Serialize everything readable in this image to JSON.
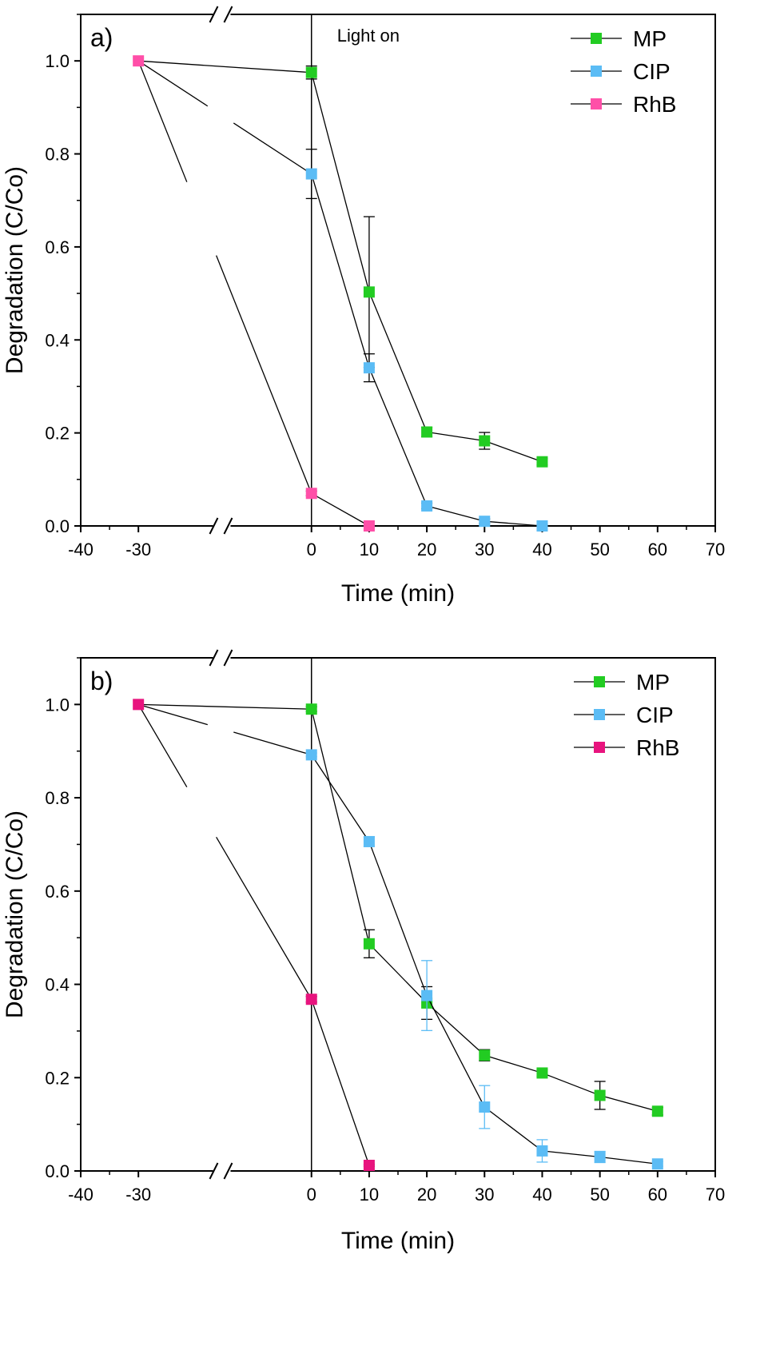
{
  "chart_data": [
    {
      "type": "scatter",
      "panel_label": "a)",
      "annotation": "Light on",
      "xlabel": "Time (min)",
      "ylabel": "Degradation (C/Co)",
      "xlim": [
        -40,
        70
      ],
      "ylim": [
        0,
        1.1
      ],
      "x_axis_break": [
        -30,
        0
      ],
      "x_ticks": [
        -40,
        -30,
        0,
        10,
        20,
        30,
        40,
        50,
        60,
        70
      ],
      "x_tick_labels": [
        "-40",
        "-30",
        "0",
        "10",
        "20",
        "30",
        "40",
        "50",
        "60",
        "70"
      ],
      "y_ticks": [
        0,
        0.2,
        0.4,
        0.6,
        0.8,
        1.0
      ],
      "y_tick_labels": [
        "0.0",
        "0.2",
        "0.4",
        "0.6",
        "0.8",
        "1.0"
      ],
      "light_on_at": 0,
      "legend_position": "top-right",
      "series": [
        {
          "name": "MP",
          "color": "#22cc22",
          "x": [
            0,
            10,
            20,
            30,
            40
          ],
          "y": [
            0.975,
            0.503,
            0.202,
            0.183,
            0.138
          ],
          "err": [
            0.014,
            0.162,
            0.01,
            0.018,
            0.007
          ]
        },
        {
          "name": "CIP",
          "color": "#5bbcf5",
          "x": [
            0,
            10,
            20,
            30,
            40
          ],
          "y": [
            0.757,
            0.34,
            0.043,
            0.01,
            0.0
          ],
          "err": [
            0.053,
            0.03,
            0.006,
            0.005,
            0.003
          ]
        },
        {
          "name": "RhB",
          "color": "#ff4fa8",
          "x": [
            -30,
            0,
            10
          ],
          "y": [
            1.0,
            0.07,
            0.0
          ],
          "err": [
            0,
            0.005,
            0
          ]
        }
      ]
    },
    {
      "type": "scatter",
      "panel_label": "b)",
      "xlabel": "Time (min)",
      "ylabel": "Degradation (C/Co)",
      "xlim": [
        -40,
        70
      ],
      "ylim": [
        0,
        1.1
      ],
      "x_axis_break": [
        -30,
        0
      ],
      "x_ticks": [
        -40,
        -30,
        0,
        10,
        20,
        30,
        40,
        50,
        60,
        70
      ],
      "x_tick_labels": [
        "-40",
        "-30",
        "0",
        "10",
        "20",
        "30",
        "40",
        "50",
        "60",
        "70"
      ],
      "y_ticks": [
        0,
        0.2,
        0.4,
        0.6,
        0.8,
        1.0
      ],
      "y_tick_labels": [
        "0.0",
        "0.2",
        "0.4",
        "0.6",
        "0.8",
        "1.0"
      ],
      "light_on_at": 0,
      "legend_position": "top-right",
      "series": [
        {
          "name": "MP",
          "color": "#22cc22",
          "x": [
            0,
            10,
            20,
            30,
            40,
            50,
            60
          ],
          "y": [
            0.99,
            0.487,
            0.36,
            0.248,
            0.21,
            0.162,
            0.128
          ],
          "err": [
            0.005,
            0.03,
            0.035,
            0.012,
            0.007,
            0.03,
            0.008
          ]
        },
        {
          "name": "CIP",
          "color": "#5bbcf5",
          "x": [
            0,
            10,
            20,
            30,
            40,
            50,
            60
          ],
          "y": [
            0.892,
            0.706,
            0.376,
            0.137,
            0.043,
            0.03,
            0.015
          ],
          "err": [
            0.004,
            0.01,
            0.075,
            0.046,
            0.024,
            0.012,
            0.005
          ]
        },
        {
          "name": "RhB",
          "color": "#e8147e",
          "x": [
            -30,
            0,
            10
          ],
          "y": [
            1.0,
            0.368,
            0.012
          ],
          "err": [
            0,
            0.006,
            0.002
          ]
        }
      ]
    }
  ]
}
